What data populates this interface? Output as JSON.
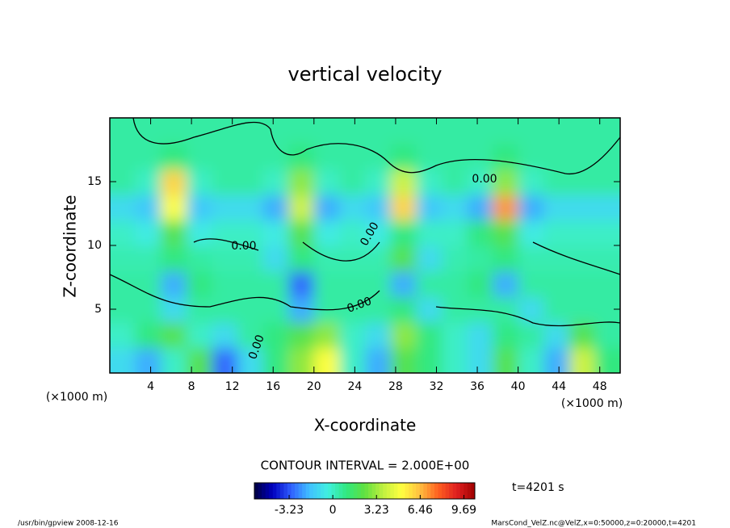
{
  "chart_data": {
    "type": "heatmap",
    "title": "vertical velocity",
    "x_label": "X-coordinate",
    "y_label": "Z-coordinate",
    "x_unit_label": "(×1000 m)",
    "y_unit_label": "(×1000 m)",
    "x": [
      1.25,
      3.75,
      6.25,
      8.75,
      11.25,
      13.75,
      16.25,
      18.75,
      21.25,
      23.75,
      26.25,
      28.75,
      31.25,
      33.75,
      36.25,
      38.75,
      41.25,
      43.75,
      46.25,
      48.75
    ],
    "y": [
      1,
      3,
      5,
      7,
      9,
      11,
      13,
      15,
      17,
      19
    ],
    "values": [
      [
        -1,
        -2,
        0,
        2,
        -3,
        -1,
        1,
        3,
        5,
        0,
        -2,
        2,
        1,
        0,
        -1,
        2,
        0,
        -2,
        4,
        1
      ],
      [
        0,
        1,
        2,
        0,
        -1,
        0.5,
        1,
        2,
        3,
        0,
        -1,
        3,
        1,
        0,
        -1,
        1,
        0.5,
        -1,
        2,
        0.5
      ],
      [
        0.5,
        0.5,
        -1,
        0.5,
        0.5,
        0.5,
        0.5,
        -2,
        0.5,
        0.5,
        0.5,
        1,
        -1,
        0.5,
        0.5,
        0.5,
        -1,
        0.5,
        0.5,
        0.5
      ],
      [
        0.5,
        0.5,
        -2,
        1,
        0.5,
        0.5,
        0.5,
        -3,
        0.5,
        0.5,
        0.5,
        -2,
        0.5,
        0.5,
        1,
        -2,
        0.5,
        0.5,
        0.5,
        0.5
      ],
      [
        0.3,
        0.3,
        1,
        0.5,
        0.3,
        0.3,
        -1,
        1,
        0.3,
        0.3,
        0.3,
        2,
        -1,
        0.3,
        0.5,
        1,
        0.3,
        0.3,
        0.3,
        0.3
      ],
      [
        0,
        -0.5,
        2,
        -0.5,
        0,
        0,
        -0.5,
        2,
        -0.5,
        0,
        -0.5,
        1,
        0,
        0,
        1,
        2,
        -0.5,
        0,
        0,
        0
      ],
      [
        -1,
        -1.5,
        5,
        -1.5,
        -1,
        -1,
        -2,
        4,
        -2,
        -1,
        -1.5,
        6,
        -1.5,
        -1,
        -2,
        7,
        -2,
        -1,
        -1,
        -1
      ],
      [
        0.5,
        0,
        6,
        0,
        0.5,
        0.5,
        0,
        3,
        0,
        0.5,
        0,
        4,
        0,
        0.5,
        0,
        3,
        0,
        0.5,
        0.5,
        0.5
      ],
      [
        0.5,
        0.5,
        1,
        0.5,
        0.5,
        0.5,
        0.5,
        1,
        0.5,
        0.5,
        0.5,
        1,
        0.5,
        0.5,
        0.5,
        1,
        0.5,
        0.5,
        0.5,
        0.5
      ],
      [
        0.5,
        0.5,
        0.5,
        0.5,
        0.5,
        0.5,
        0.5,
        0.5,
        0.5,
        0.5,
        0.5,
        0.5,
        0.5,
        0.5,
        0.5,
        0.5,
        0.5,
        0.5,
        0.5,
        0.5
      ]
    ],
    "xlim": [
      0,
      50
    ],
    "ylim": [
      0,
      20
    ],
    "xticks": [
      4,
      8,
      12,
      16,
      20,
      24,
      28,
      32,
      36,
      40,
      44,
      48
    ],
    "yticks": [
      5,
      10,
      15
    ],
    "colors": [
      "#000040",
      "#0000c0",
      "#3060ff",
      "#40c0ff",
      "#40f0e0",
      "#30e880",
      "#60e040",
      "#c0f040",
      "#ffff40",
      "#ffc040",
      "#ff6020",
      "#e02020",
      "#a00000"
    ],
    "clim": [
      -5.8,
      10.5
    ],
    "cticks": [
      -3.23,
      0,
      3.23,
      6.46,
      9.69
    ],
    "contour_labels": [
      "0.00",
      "0.00",
      "0.00",
      "0.00",
      "0.00"
    ],
    "contour_interval": "CONTOUR INTERVAL = 2.000E+00",
    "time_label": "t=4201 s",
    "footer_left": "/usr/bin/gpview  2008-12-16",
    "footer_right": "MarsCond_VelZ.nc@VelZ,x=0:50000,z=0:20000,t=4201"
  }
}
